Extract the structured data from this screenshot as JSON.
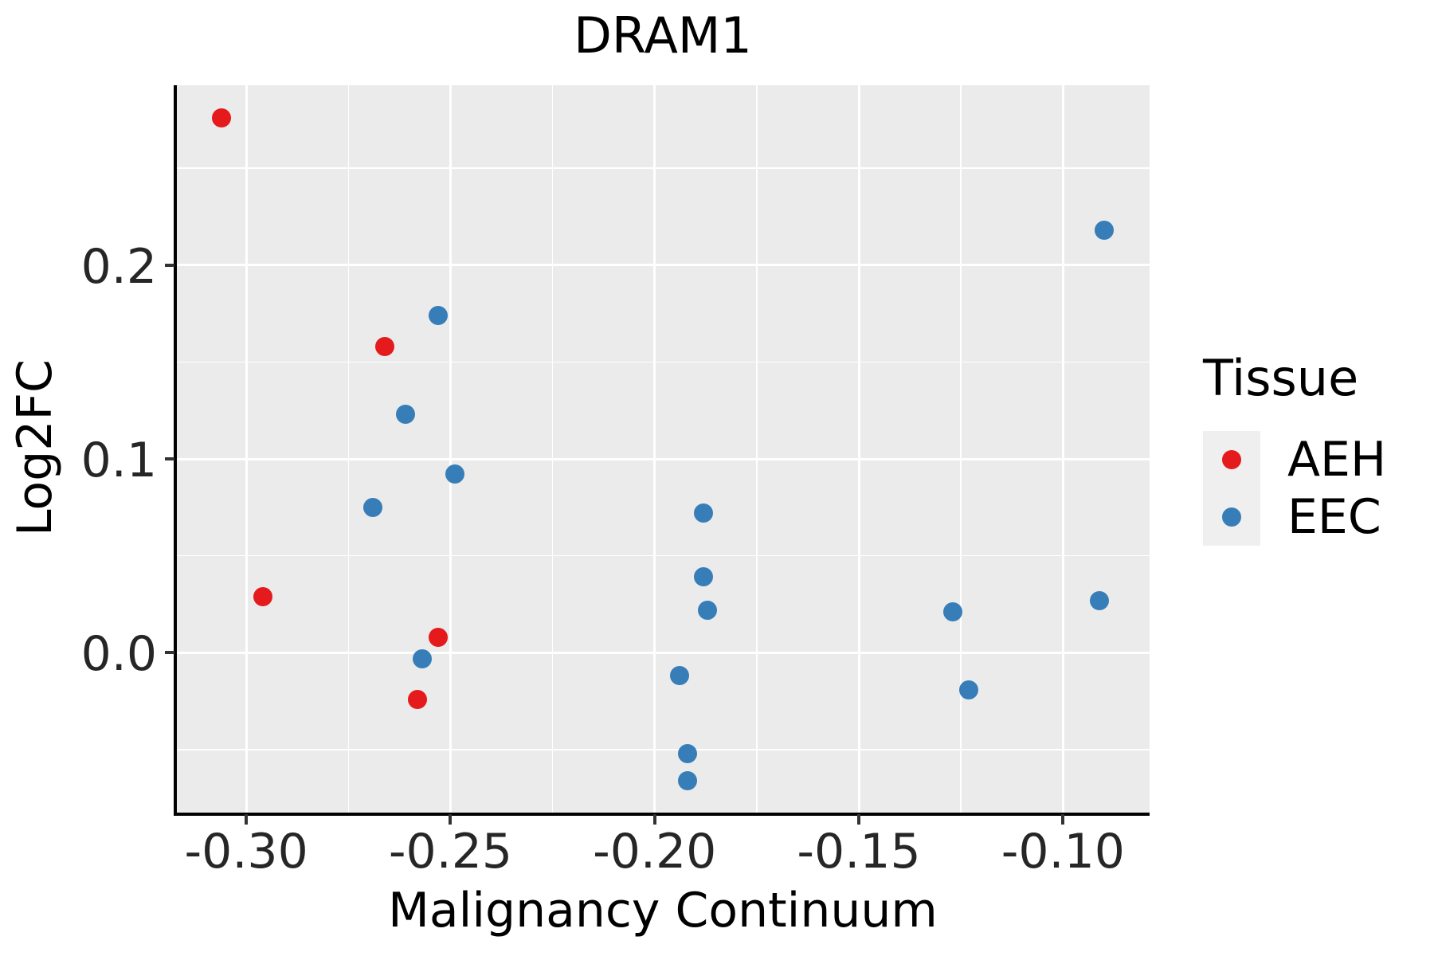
{
  "chart_data": {
    "type": "scatter",
    "title": "DRAM1",
    "xlabel": "Malignancy Continuum",
    "ylabel": "Log2FC",
    "xlim": [
      -0.3172,
      -0.0788
    ],
    "ylim": [
      -0.0825,
      0.2928
    ],
    "x_ticks": [
      -0.3,
      -0.25,
      -0.2,
      -0.15,
      -0.1
    ],
    "x_tick_labels": [
      "-0.30",
      "-0.25",
      "-0.20",
      "-0.15",
      "-0.10"
    ],
    "y_ticks": [
      0.0,
      0.1,
      0.2
    ],
    "y_tick_labels": [
      "0.0",
      "0.1",
      "0.2"
    ],
    "x_minor_ticks": [
      -0.275,
      -0.225,
      -0.175,
      -0.125
    ],
    "y_minor_ticks": [
      -0.05,
      0.05,
      0.15,
      0.25
    ],
    "grid": true,
    "panel_bg": "#ebebeb",
    "grid_color": "#ffffff",
    "legend": {
      "title": "Tissue",
      "position": "right",
      "entries": [
        {
          "label": "AEH",
          "color": "#e41a1c"
        },
        {
          "label": "EEC",
          "color": "#377eb8"
        }
      ]
    },
    "series": [
      {
        "name": "AEH",
        "color": "#e41a1c",
        "points": [
          [
            -0.306,
            0.276
          ],
          [
            -0.266,
            0.158
          ],
          [
            -0.296,
            0.029
          ],
          [
            -0.253,
            0.008
          ],
          [
            -0.258,
            -0.024
          ]
        ]
      },
      {
        "name": "EEC",
        "color": "#377eb8",
        "points": [
          [
            -0.253,
            0.174
          ],
          [
            -0.261,
            0.123
          ],
          [
            -0.249,
            0.092
          ],
          [
            -0.269,
            0.075
          ],
          [
            -0.257,
            -0.003
          ],
          [
            -0.188,
            0.072
          ],
          [
            -0.188,
            0.039
          ],
          [
            -0.187,
            0.022
          ],
          [
            -0.194,
            -0.012
          ],
          [
            -0.192,
            -0.052
          ],
          [
            -0.192,
            -0.066
          ],
          [
            -0.127,
            0.021
          ],
          [
            -0.123,
            -0.019
          ],
          [
            -0.091,
            0.027
          ],
          [
            -0.09,
            0.218
          ]
        ]
      }
    ]
  }
}
